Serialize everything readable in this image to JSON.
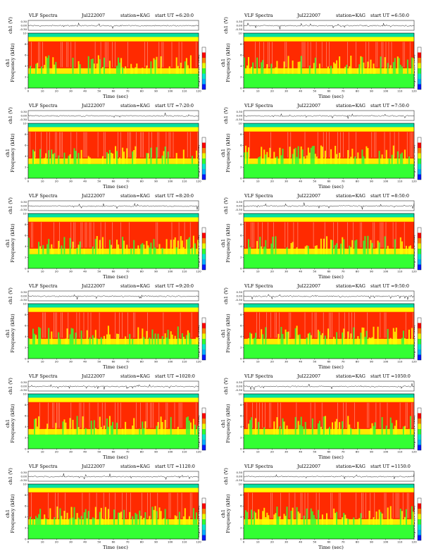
{
  "palette": {
    "cbar": [
      "#0018ff",
      "#00b0ff",
      "#00e8d0",
      "#30ff30",
      "#e8ff00",
      "#ff8000",
      "#ff0000",
      "#ffffff"
    ],
    "spec": {
      "low": "#33ff33",
      "mid": "#ffff00",
      "high": "#ff2200",
      "top": "#00e0a0"
    }
  },
  "chart_data": [
    {
      "type": "heatmap",
      "title": "VLF Spectra",
      "date": "Jul222007",
      "station": "station=KAG",
      "start_ut": "start  UT =6:20:0",
      "ts_ylabel": "ch1 (V)",
      "ts_ticks": [
        "0.30",
        "0.00",
        "-0.30"
      ],
      "ylabel_top": "ch1",
      "ylabel_bottom": "Frequency  (kHz)",
      "xlabel": "Time  (sec)",
      "xlim": [
        0,
        120
      ],
      "ylim": [
        0,
        10
      ],
      "x_ticks": [
        "0",
        "10",
        "20",
        "30",
        "40",
        "50",
        "60",
        "70",
        "80",
        "90",
        "100",
        "110",
        "120"
      ],
      "y_ticks": [
        "0",
        "2",
        "4",
        "6",
        "8",
        "10"
      ],
      "colorbar_label": "log(PSD)(V²/Hz)"
    },
    {
      "type": "heatmap",
      "title": "VLF Spectra",
      "date": "Jul222007",
      "station": "station=KAG",
      "start_ut": "start  UT =6:50:0",
      "ts_ylabel": "ch1 (V)",
      "ts_ticks": [
        "0.30",
        "0.00",
        "-0.30"
      ],
      "ylabel_top": "ch1",
      "ylabel_bottom": "Frequency  (kHz)",
      "xlabel": "Time  (sec)",
      "xlim": [
        0,
        120
      ],
      "ylim": [
        0,
        10
      ],
      "x_ticks": [
        "0",
        "10",
        "20",
        "30",
        "40",
        "50",
        "60",
        "70",
        "80",
        "90",
        "100",
        "110",
        "120"
      ],
      "y_ticks": [
        "0",
        "2",
        "4",
        "6",
        "8",
        "10"
      ],
      "colorbar_label": "log(PSD)(V²/Hz)"
    },
    {
      "type": "heatmap",
      "title": "VLF Spectra",
      "date": "Jul222007",
      "station": "station=KAG",
      "start_ut": "start  UT =7:20:0",
      "ts_ylabel": "ch1 (V)",
      "ts_ticks": [
        "0.30",
        "0.00",
        "-0.30"
      ],
      "ylabel_top": "ch1",
      "ylabel_bottom": "Frequency  (kHz)",
      "xlabel": "Time  (sec)",
      "xlim": [
        0,
        120
      ],
      "ylim": [
        0,
        10
      ],
      "x_ticks": [
        "0",
        "10",
        "20",
        "30",
        "40",
        "50",
        "60",
        "70",
        "80",
        "90",
        "100",
        "110",
        "120"
      ],
      "y_ticks": [
        "0",
        "2",
        "4",
        "6",
        "8",
        "10"
      ],
      "colorbar_label": "log(PSD)(V²/Hz)"
    },
    {
      "type": "heatmap",
      "title": "VLF Spectra",
      "date": "Jul222007",
      "station": "station=KAG",
      "start_ut": "start  UT =7:50:0",
      "ts_ylabel": "ch1 (V)",
      "ts_ticks": [
        "0.30",
        "0.00",
        "-0.30"
      ],
      "ylabel_top": "ch1",
      "ylabel_bottom": "Frequency  (kHz)",
      "xlabel": "Time  (sec)",
      "xlim": [
        0,
        120
      ],
      "ylim": [
        0,
        10
      ],
      "x_ticks": [
        "0",
        "10",
        "20",
        "30",
        "40",
        "50",
        "60",
        "70",
        "80",
        "90",
        "100",
        "110",
        "120"
      ],
      "y_ticks": [
        "0",
        "2",
        "4",
        "6",
        "8",
        "10"
      ],
      "colorbar_label": "log(PSD)(V²/Hz)"
    },
    {
      "type": "heatmap",
      "title": "VLF Spectra",
      "date": "Jul222007",
      "station": "station=KAG",
      "start_ut": "start  UT =8:20:0",
      "ts_ylabel": "ch1 (V)",
      "ts_ticks": [
        "0.30",
        "0.00",
        "-0.30"
      ],
      "ylabel_top": "ch1",
      "ylabel_bottom": "Frequency  (kHz)",
      "xlabel": "Time  (sec)",
      "xlim": [
        0,
        120
      ],
      "ylim": [
        0,
        10
      ],
      "x_ticks": [
        "0",
        "10",
        "20",
        "30",
        "40",
        "50",
        "60",
        "70",
        "80",
        "90",
        "100",
        "110",
        "120"
      ],
      "y_ticks": [
        "0",
        "2",
        "4",
        "6",
        "8",
        "10"
      ],
      "colorbar_label": "log(PSD)(V²/Hz)"
    },
    {
      "type": "heatmap",
      "title": "VLF Spectra",
      "date": "Jul222007",
      "station": "station=KAG",
      "start_ut": "start  UT =8:50:0",
      "ts_ylabel": "ch1 (V)",
      "ts_ticks": [
        "0.30",
        "0.00",
        "-0.30"
      ],
      "ylabel_top": "ch1",
      "ylabel_bottom": "Frequency  (kHz)",
      "xlabel": "Time  (sec)",
      "xlim": [
        0,
        120
      ],
      "ylim": [
        0,
        10
      ],
      "x_ticks": [
        "0",
        "10",
        "20",
        "30",
        "40",
        "50",
        "60",
        "70",
        "80",
        "90",
        "100",
        "110",
        "120"
      ],
      "y_ticks": [
        "0",
        "2",
        "4",
        "6",
        "8",
        "10"
      ],
      "colorbar_label": "log(PSD)(V²/Hz)"
    },
    {
      "type": "heatmap",
      "title": "VLF Spectra",
      "date": "Jul222007",
      "station": "station=KAG",
      "start_ut": "start  UT =9:20:0",
      "ts_ylabel": "ch1 (V)",
      "ts_ticks": [
        "0.30",
        "0.00",
        "-0.30"
      ],
      "ylabel_top": "ch1",
      "ylabel_bottom": "Frequency  (kHz)",
      "xlabel": "Time  (sec)",
      "xlim": [
        0,
        120
      ],
      "ylim": [
        0,
        10
      ],
      "x_ticks": [
        "0",
        "10",
        "20",
        "30",
        "40",
        "50",
        "60",
        "70",
        "80",
        "90",
        "100",
        "110",
        "120"
      ],
      "y_ticks": [
        "0",
        "2",
        "4",
        "6",
        "8",
        "10"
      ],
      "colorbar_label": "log(PSD)(V²/Hz)"
    },
    {
      "type": "heatmap",
      "title": "VLF Spectra",
      "date": "Jul222007",
      "station": "station=KAG",
      "start_ut": "start  UT =9:50:0",
      "ts_ylabel": "ch1 (V)",
      "ts_ticks": [
        "0.30",
        "0.00",
        "-0.30"
      ],
      "ylabel_top": "ch1",
      "ylabel_bottom": "Frequency  (kHz)",
      "xlabel": "Time  (sec)",
      "xlim": [
        0,
        120
      ],
      "ylim": [
        0,
        10
      ],
      "x_ticks": [
        "0",
        "10",
        "20",
        "30",
        "40",
        "50",
        "60",
        "70",
        "80",
        "90",
        "100",
        "110",
        "120"
      ],
      "y_ticks": [
        "0",
        "2",
        "4",
        "6",
        "8",
        "10"
      ],
      "colorbar_label": "log(PSD)(V²/Hz)"
    },
    {
      "type": "heatmap",
      "title": "VLF Spectra",
      "date": "Jul222007",
      "station": "station=KAG",
      "start_ut": "start  UT =1020:0",
      "ts_ylabel": "ch1 (V)",
      "ts_ticks": [
        "0.30",
        "0.00",
        "-0.30"
      ],
      "ylabel_top": "ch1",
      "ylabel_bottom": "Frequency  (kHz)",
      "xlabel": "Time  (sec)",
      "xlim": [
        0,
        120
      ],
      "ylim": [
        0,
        10
      ],
      "x_ticks": [
        "0",
        "10",
        "20",
        "30",
        "40",
        "50",
        "60",
        "70",
        "80",
        "90",
        "100",
        "110",
        "120"
      ],
      "y_ticks": [
        "0",
        "2",
        "4",
        "6",
        "8",
        "10"
      ],
      "colorbar_label": "log(PSD)(V²/Hz)"
    },
    {
      "type": "heatmap",
      "title": "VLF Spectra",
      "date": "Jul222007",
      "station": "station=KAG",
      "start_ut": "start  UT =1050:0",
      "ts_ylabel": "ch1 (V)",
      "ts_ticks": [
        "0.30",
        "0.00",
        "-0.30"
      ],
      "ylabel_top": "ch1",
      "ylabel_bottom": "Frequency  (kHz)",
      "xlabel": "Time  (sec)",
      "xlim": [
        0,
        120
      ],
      "ylim": [
        0,
        10
      ],
      "x_ticks": [
        "0",
        "10",
        "20",
        "30",
        "40",
        "50",
        "60",
        "70",
        "80",
        "90",
        "100",
        "110",
        "120"
      ],
      "y_ticks": [
        "0",
        "2",
        "4",
        "6",
        "8",
        "10"
      ],
      "colorbar_label": "log(PSD)(V²/Hz)"
    },
    {
      "type": "heatmap",
      "title": "VLF Spectra",
      "date": "Jul222007",
      "station": "station=KAG",
      "start_ut": "start  UT =1120:0",
      "ts_ylabel": "ch1 (V)",
      "ts_ticks": [
        "0.30",
        "0.00",
        "-0.30"
      ],
      "ylabel_top": "ch1",
      "ylabel_bottom": "Frequency  (kHz)",
      "xlabel": "Time  (sec)",
      "xlim": [
        0,
        120
      ],
      "ylim": [
        0,
        10
      ],
      "x_ticks": [
        "0",
        "10",
        "20",
        "30",
        "40",
        "50",
        "60",
        "70",
        "80",
        "90",
        "100",
        "110",
        "120"
      ],
      "y_ticks": [
        "0",
        "2",
        "4",
        "6",
        "8",
        "10"
      ],
      "colorbar_label": "log(PSD)(V²/Hz)"
    },
    {
      "type": "heatmap",
      "title": "VLF Spectra",
      "date": "Jul222007",
      "station": "station=KAG",
      "start_ut": "start  UT =1150:0",
      "ts_ylabel": "ch1 (V)",
      "ts_ticks": [
        "0.30",
        "0.00",
        "-0.30"
      ],
      "ylabel_top": "ch1",
      "ylabel_bottom": "Frequency  (kHz)",
      "xlabel": "Time  (sec)",
      "xlim": [
        0,
        120
      ],
      "ylim": [
        0,
        10
      ],
      "x_ticks": [
        "0",
        "10",
        "20",
        "30",
        "40",
        "50",
        "60",
        "70",
        "80",
        "90",
        "100",
        "110",
        "120"
      ],
      "y_ticks": [
        "0",
        "2",
        "4",
        "6",
        "8",
        "10"
      ],
      "colorbar_label": "log(PSD)(V²/Hz)"
    }
  ]
}
